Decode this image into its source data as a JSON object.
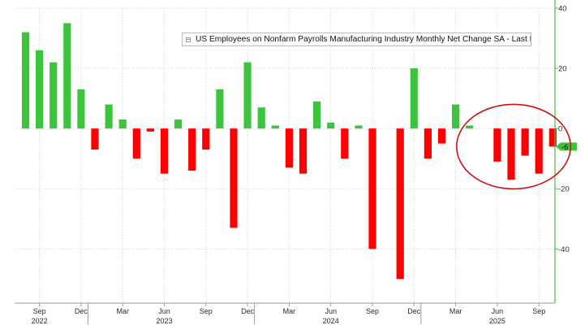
{
  "chart_data": {
    "type": "bar",
    "legend": {
      "text": "US Employees on Nonfarm Payrolls Manufacturing Industry Monthly Net Change SA - Last Price",
      "last_value": -6,
      "placement": "top-right"
    },
    "colors": {
      "positive": "#3dc43d",
      "negative": "#ff0000",
      "last_price": "#3dc43d",
      "circle": "#cc1111"
    },
    "y_axis": {
      "side": "right",
      "ylim": [
        -58,
        40
      ],
      "ticks": [
        40,
        20,
        0,
        -20,
        -40
      ]
    },
    "last_price_label": "-6",
    "x_axis": {
      "month_labels": [
        {
          "label": "Sep",
          "index": 1
        },
        {
          "label": "Dec",
          "index": 4
        },
        {
          "label": "Mar",
          "index": 7
        },
        {
          "label": "Jun",
          "index": 10
        },
        {
          "label": "Sep",
          "index": 13
        },
        {
          "label": "Dec",
          "index": 16
        },
        {
          "label": "Mar",
          "index": 19
        },
        {
          "label": "Jun",
          "index": 22
        },
        {
          "label": "Sep",
          "index": 25
        },
        {
          "label": "Dec",
          "index": 28
        },
        {
          "label": "Mar",
          "index": 31
        },
        {
          "label": "Jun",
          "index": 34
        },
        {
          "label": "Sep",
          "index": 37
        }
      ],
      "year_labels": [
        {
          "label": "2022",
          "index": 1
        },
        {
          "label": "2023",
          "index": 10
        },
        {
          "label": "2024",
          "index": 22
        },
        {
          "label": "2025",
          "index": 34
        }
      ]
    },
    "categories": [
      "2022-08",
      "2022-09",
      "2022-10",
      "2022-11",
      "2022-12",
      "2023-01",
      "2023-02",
      "2023-03",
      "2023-04",
      "2023-05",
      "2023-06",
      "2023-07",
      "2023-08",
      "2023-09",
      "2023-10",
      "2023-11",
      "2023-12",
      "2024-01",
      "2024-02",
      "2024-03",
      "2024-04",
      "2024-05",
      "2024-06",
      "2024-07",
      "2024-08",
      "2024-09",
      "2024-10",
      "2024-11",
      "2024-12",
      "2025-01",
      "2025-02",
      "2025-03",
      "2025-04",
      "2025-05",
      "2025-06",
      "2025-07",
      "2025-08",
      "2025-09",
      "2025-10"
    ],
    "values": [
      32,
      26,
      22,
      35,
      13,
      -7,
      8,
      3,
      -10,
      -1,
      -15,
      3,
      -14,
      -7,
      13,
      -33,
      22,
      7,
      1,
      -13,
      -15,
      9,
      2,
      -10,
      1,
      -40,
      0,
      -50,
      20,
      -10,
      -5,
      8,
      1,
      0,
      -11,
      -17,
      -9,
      -15,
      -6
    ],
    "highlighted_range": [
      "2025-05",
      "2025-09"
    ]
  }
}
